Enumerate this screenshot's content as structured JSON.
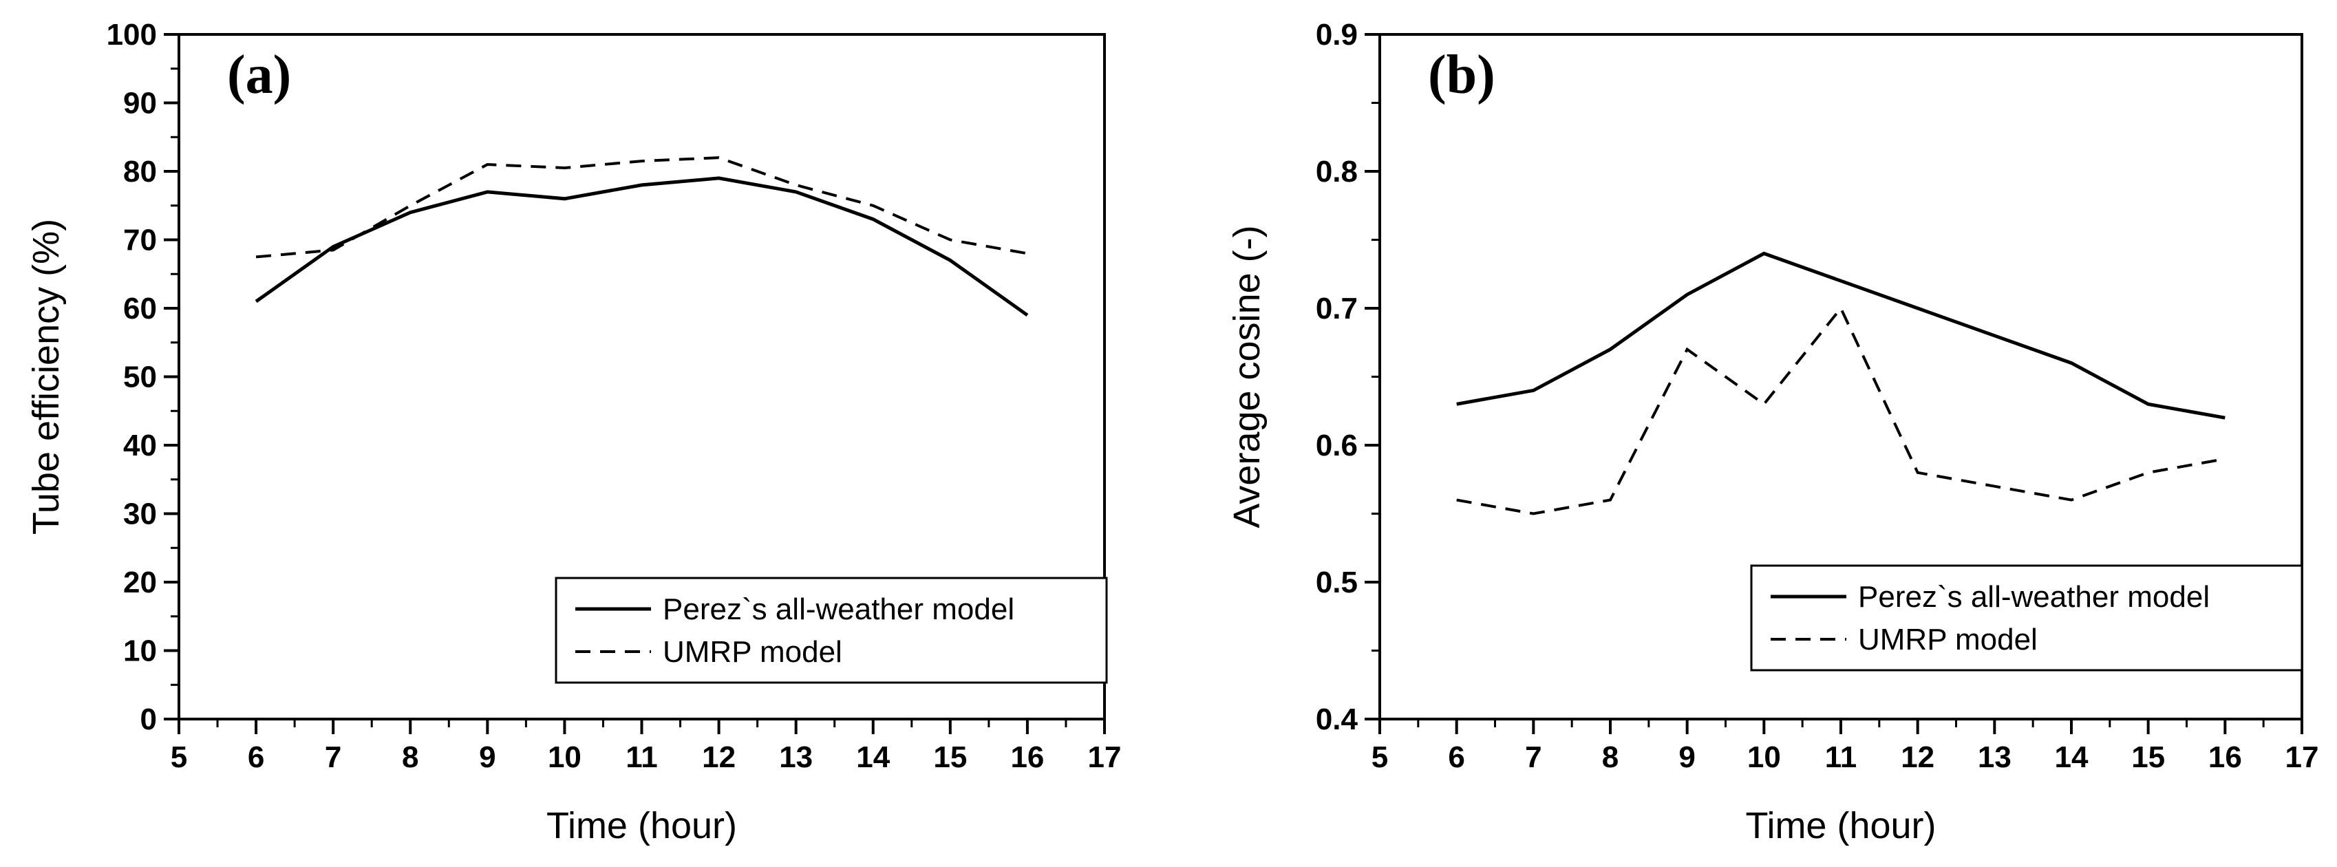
{
  "chart_data": [
    {
      "type": "line",
      "panel_label": "(a)",
      "xlabel": "Time (hour)",
      "ylabel": "Tube efficiency (%)",
      "xlim": [
        5,
        17
      ],
      "ylim": [
        0,
        100
      ],
      "x_ticks": [
        "5",
        "6",
        "7",
        "8",
        "9",
        "10",
        "11",
        "12",
        "13",
        "14",
        "15",
        "16",
        "17"
      ],
      "y_ticks": [
        "0",
        "10",
        "20",
        "30",
        "40",
        "50",
        "60",
        "70",
        "80",
        "90",
        "100"
      ],
      "legend": {
        "position": "bottom-right"
      },
      "series": [
        {
          "name": "Perez`s all-weather model",
          "style": "solid",
          "x": [
            6,
            7,
            8,
            9,
            10,
            11,
            12,
            13,
            14,
            15,
            16
          ],
          "values": [
            61,
            69,
            74,
            77,
            76,
            78,
            79,
            77,
            73,
            67,
            59
          ]
        },
        {
          "name": "UMRP model",
          "style": "dashed",
          "x": [
            6,
            7,
            8,
            9,
            10,
            11,
            12,
            13,
            14,
            15,
            16
          ],
          "values": [
            67.5,
            68.5,
            75,
            81,
            80.5,
            81.5,
            82,
            78,
            75,
            70,
            68
          ]
        }
      ]
    },
    {
      "type": "line",
      "panel_label": "(b)",
      "xlabel": "Time (hour)",
      "ylabel": "Average cosine (-)",
      "xlim": [
        5,
        17
      ],
      "ylim": [
        0.4,
        0.9
      ],
      "x_ticks": [
        "5",
        "6",
        "7",
        "8",
        "9",
        "10",
        "11",
        "12",
        "13",
        "14",
        "15",
        "16",
        "17"
      ],
      "y_ticks": [
        "0.4",
        "0.5",
        "0.6",
        "0.7",
        "0.8",
        "0.9"
      ],
      "legend": {
        "position": "bottom-right"
      },
      "series": [
        {
          "name": "Perez`s all-weather model",
          "style": "solid",
          "x": [
            6,
            7,
            8,
            9,
            10,
            11,
            12,
            13,
            14,
            15,
            16
          ],
          "values": [
            0.63,
            0.64,
            0.67,
            0.71,
            0.74,
            0.72,
            0.7,
            0.68,
            0.66,
            0.63,
            0.62
          ]
        },
        {
          "name": "UMRP model",
          "style": "dashed",
          "x": [
            6,
            7,
            8,
            9,
            10,
            11,
            12,
            13,
            14,
            15,
            16
          ],
          "values": [
            0.56,
            0.55,
            0.56,
            0.67,
            0.63,
            0.7,
            0.58,
            0.57,
            0.56,
            0.58,
            0.59
          ]
        }
      ]
    }
  ]
}
